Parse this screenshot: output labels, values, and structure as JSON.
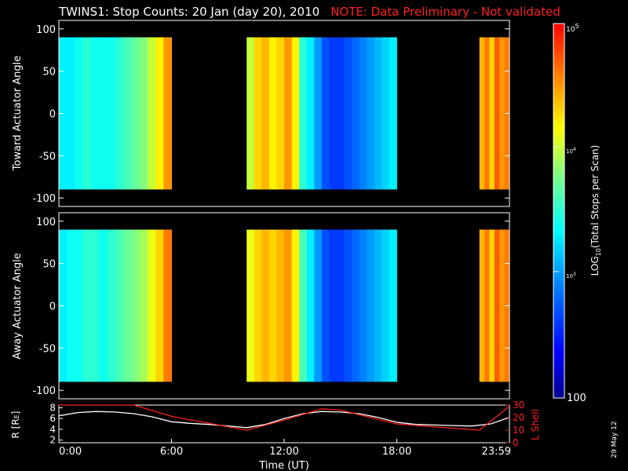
{
  "title": "TWINS1: Stop Counts: 20 Jan (day  20), 2010",
  "note": "NOTE: Data Preliminary - Not validated",
  "date_stamp": "29 May 12",
  "colors": {
    "background": "#000000",
    "frame": "#ffffff",
    "note": "#ff2020",
    "R_line": "#ffffff",
    "L_line": "#ff2020"
  },
  "chart_data": [
    {
      "type": "heatmap",
      "panel": "top",
      "ylabel": "Toward Actuator Angle",
      "ylim": [
        -110,
        110
      ],
      "yticks": [
        "100",
        "50",
        "0",
        "-50",
        "-100"
      ],
      "xlim": [
        0,
        24
      ],
      "data_blocks": [
        {
          "start_h": 0.0,
          "end_h": 6.0,
          "angle_range": [
            -90,
            90
          ],
          "log_counts": [
            3.3,
            3.3,
            3.4,
            3.5,
            3.4,
            3.4,
            3.4,
            3.5,
            3.6,
            3.7,
            3.8,
            4.0,
            4.2,
            4.5
          ]
        },
        {
          "start_h": 10.0,
          "end_h": 18.0,
          "angle_range": [
            -90,
            90
          ],
          "log_counts": [
            4.0,
            4.3,
            4.4,
            4.2,
            4.3,
            4.5,
            4.2,
            3.5,
            3.3,
            3.0,
            2.7,
            2.6,
            2.6,
            2.7,
            2.8,
            2.9,
            3.0,
            3.1,
            3.2,
            3.3
          ]
        },
        {
          "start_h": 22.4,
          "end_h": 24.0,
          "angle_range": [
            -90,
            90
          ],
          "log_counts": [
            4.4,
            4.6,
            4.3,
            4.7,
            4.5,
            4.6
          ]
        }
      ]
    },
    {
      "type": "heatmap",
      "panel": "bottom",
      "ylabel": "Away Actuator Angle",
      "ylim": [
        -110,
        110
      ],
      "yticks": [
        "100",
        "50",
        "0",
        "-50",
        "-100"
      ],
      "xlim": [
        0,
        24
      ],
      "data_blocks": [
        {
          "start_h": 0.0,
          "end_h": 6.0,
          "angle_range": [
            -90,
            90
          ],
          "log_counts": [
            3.3,
            3.4,
            3.4,
            3.5,
            3.5,
            3.4,
            3.5,
            3.6,
            3.7,
            3.8,
            3.9,
            4.1,
            4.3,
            4.6
          ]
        },
        {
          "start_h": 10.0,
          "end_h": 18.0,
          "angle_range": [
            -90,
            90
          ],
          "log_counts": [
            4.1,
            4.3,
            4.4,
            4.3,
            4.4,
            4.5,
            4.2,
            3.6,
            3.3,
            3.0,
            2.7,
            2.6,
            2.6,
            2.7,
            2.8,
            2.9,
            3.0,
            3.1,
            3.2,
            3.3
          ]
        },
        {
          "start_h": 22.4,
          "end_h": 24.0,
          "angle_range": [
            -90,
            90
          ],
          "log_counts": [
            4.4,
            4.6,
            4.3,
            4.7,
            4.5,
            4.6
          ]
        }
      ]
    },
    {
      "type": "line",
      "panel": "orbit",
      "xlabel": "Time (UT)",
      "xticks": [
        "0:00",
        "6:00",
        "12:00",
        "18:00",
        "23:59"
      ],
      "xlim": [
        0,
        24
      ],
      "ylabel_left": "R [R",
      "ylabel_left_sub": "E",
      "ylabel_left_end": "]",
      "ylim_left": [
        1.5,
        8.5
      ],
      "yticks_left": [
        "8",
        "6",
        "4",
        "2"
      ],
      "ylabel_right": "L Shell",
      "ylim_right": [
        0,
        30
      ],
      "yticks_right": [
        "30",
        "20",
        "10",
        "0"
      ],
      "series": [
        {
          "axis": "left",
          "x": [
            0,
            1,
            2,
            3,
            4,
            5,
            6,
            7,
            8,
            9,
            10,
            11,
            12,
            13,
            14,
            15,
            16,
            17,
            18,
            19,
            20,
            21,
            22,
            23,
            24
          ],
          "values": [
            6.5,
            7.1,
            7.3,
            7.2,
            6.9,
            6.3,
            5.4,
            5.1,
            4.9,
            4.6,
            4.3,
            4.9,
            6.0,
            6.9,
            7.3,
            7.2,
            6.9,
            6.2,
            5.3,
            4.9,
            4.8,
            4.7,
            4.6,
            5.0,
            6.2
          ]
        },
        {
          "axis": "right",
          "x": [
            0,
            4,
            6,
            10,
            12,
            14,
            15,
            18,
            22.4,
            24
          ],
          "values": [
            30,
            30,
            21,
            10,
            18,
            27,
            26,
            15,
            10,
            29
          ]
        }
      ]
    },
    {
      "type": "colorbar",
      "label_prefix": "LOG",
      "label_sub": "10",
      "label_suffix": "(Total Stops per Scan)",
      "scale": "log",
      "range": [
        100,
        100000
      ],
      "tick_top_base": "10",
      "tick_top_exp": "5",
      "tick_mid_base": "10",
      "tick_mid_exp": "4",
      "tick_low_base": "10",
      "tick_low_exp": "3",
      "tick_bottom": "100"
    }
  ]
}
